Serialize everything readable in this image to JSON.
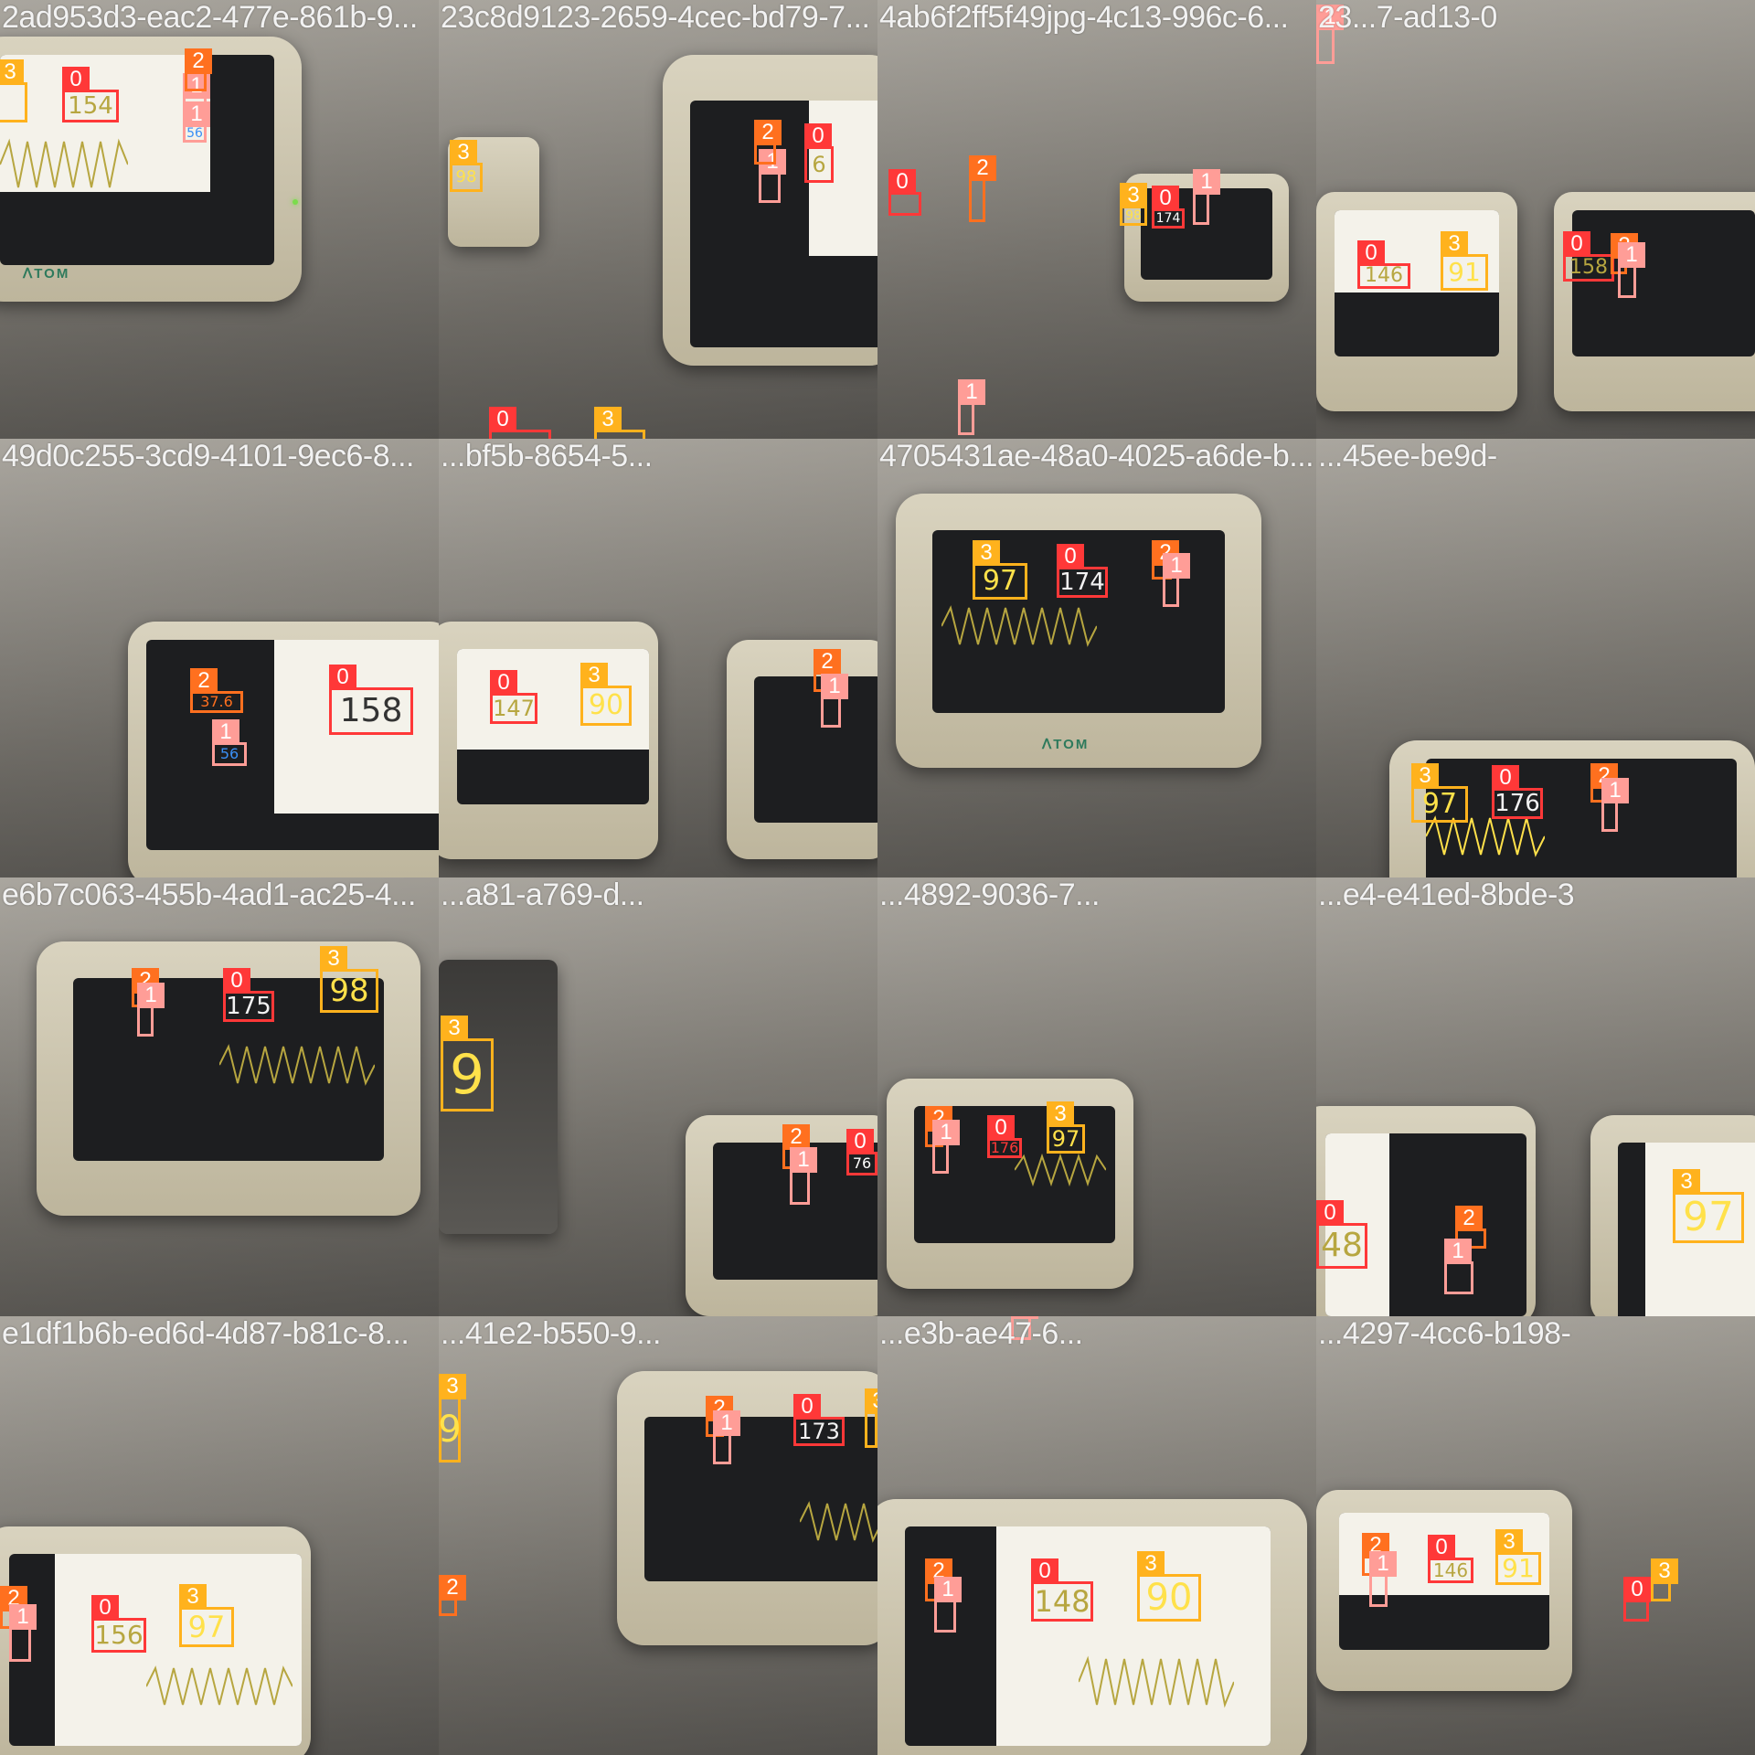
{
  "mosaic": {
    "tiles": [
      {
        "file": "2ad953d3-eac2-477e-861b-9...",
        "boxes": [
          {
            "cls": "0",
            "text": "154"
          },
          {
            "cls": "1",
            "text": ""
          },
          {
            "cls": "2",
            "text": ""
          },
          {
            "cls": "1",
            "text": "56"
          },
          {
            "cls": "3",
            "text": ""
          }
        ]
      },
      {
        "file": "23c8d9123-2659-4cec-bd79-7...",
        "boxes": [
          {
            "cls": "0",
            "text": "6"
          },
          {
            "cls": "1",
            "text": ""
          },
          {
            "cls": "2",
            "text": ""
          },
          {
            "cls": "3",
            "text": "98"
          },
          {
            "cls": "0",
            "text": ""
          },
          {
            "cls": "3",
            "text": ""
          }
        ]
      },
      {
        "file": "4ab6f2ff5f49jpg-4c13-996c-6...",
        "boxes": [
          {
            "cls": "0",
            "text": "174"
          },
          {
            "cls": "1",
            "text": ""
          },
          {
            "cls": "2",
            "text": ""
          },
          {
            "cls": "3",
            "text": "98"
          },
          {
            "cls": "0",
            "text": ""
          },
          {
            "cls": "1",
            "text": ""
          }
        ]
      },
      {
        "file": "23...7-ad13-0",
        "boxes": [
          {
            "cls": "0",
            "text": "146"
          },
          {
            "cls": "3",
            "text": "91"
          },
          {
            "cls": "0",
            "text": "158"
          },
          {
            "cls": "2",
            "text": ""
          },
          {
            "cls": "1",
            "text": ""
          },
          {
            "cls": "1",
            "text": ""
          }
        ]
      },
      {
        "file": "49d0c255-3cd9-4101-9ec6-8...",
        "boxes": [
          {
            "cls": "0",
            "text": "158"
          },
          {
            "cls": "1",
            "text": "56"
          },
          {
            "cls": "2",
            "text": "37.6"
          }
        ]
      },
      {
        "file": "...bf5b-8654-5...",
        "boxes": [
          {
            "cls": "0",
            "text": "147"
          },
          {
            "cls": "3",
            "text": "90"
          },
          {
            "cls": "2",
            "text": ""
          },
          {
            "cls": "1",
            "text": ""
          }
        ]
      },
      {
        "file": "4705431ae-48a0-4025-a6de-b...",
        "boxes": [
          {
            "cls": "0",
            "text": "174"
          },
          {
            "cls": "3",
            "text": "97"
          },
          {
            "cls": "2",
            "text": ""
          },
          {
            "cls": "1",
            "text": ""
          }
        ]
      },
      {
        "file": "...45ee-be9d-",
        "boxes": [
          {
            "cls": "0",
            "text": "176"
          },
          {
            "cls": "3",
            "text": "97"
          },
          {
            "cls": "2",
            "text": ""
          },
          {
            "cls": "1",
            "text": ""
          }
        ]
      },
      {
        "file": "e6b7c063-455b-4ad1-ac25-4...",
        "boxes": [
          {
            "cls": "0",
            "text": "175"
          },
          {
            "cls": "3",
            "text": "98"
          },
          {
            "cls": "2",
            "text": ""
          },
          {
            "cls": "1",
            "text": ""
          }
        ]
      },
      {
        "file": "...a81-a769-d...",
        "boxes": [
          {
            "cls": "3",
            "text": "9"
          },
          {
            "cls": "2",
            "text": ""
          },
          {
            "cls": "1",
            "text": ""
          },
          {
            "cls": "0",
            "text": "76"
          }
        ]
      },
      {
        "file": "...4892-9036-7...",
        "boxes": [
          {
            "cls": "0",
            "text": "176"
          },
          {
            "cls": "3",
            "text": "97"
          },
          {
            "cls": "2",
            "text": ""
          },
          {
            "cls": "1",
            "text": ""
          }
        ]
      },
      {
        "file": "...e4-e41ed-8bde-3",
        "boxes": [
          {
            "cls": "0",
            "text": "48"
          },
          {
            "cls": "3",
            "text": "97"
          },
          {
            "cls": "2",
            "text": ""
          },
          {
            "cls": "1",
            "text": ""
          }
        ]
      },
      {
        "file": "e1df1b6b-ed6d-4d87-b81c-8...",
        "boxes": [
          {
            "cls": "0",
            "text": "156"
          },
          {
            "cls": "3",
            "text": "97"
          },
          {
            "cls": "2",
            "text": ""
          },
          {
            "cls": "1",
            "text": ""
          }
        ]
      },
      {
        "file": "...41e2-b550-9...",
        "boxes": [
          {
            "cls": "0",
            "text": "173"
          },
          {
            "cls": "3",
            "text": "9"
          },
          {
            "cls": "2",
            "text": ""
          },
          {
            "cls": "1",
            "text": ""
          },
          {
            "cls": "2",
            "text": ""
          },
          {
            "cls": "3",
            "text": ""
          }
        ]
      },
      {
        "file": "...e3b-ae47-6...",
        "boxes": [
          {
            "cls": "0",
            "text": "148"
          },
          {
            "cls": "3",
            "text": "90"
          },
          {
            "cls": "2",
            "text": ""
          },
          {
            "cls": "1",
            "text": ""
          },
          {
            "cls": "1",
            "text": ""
          }
        ]
      },
      {
        "file": "...4297-4cc6-b198-",
        "boxes": [
          {
            "cls": "0",
            "text": "146"
          },
          {
            "cls": "3",
            "text": "91"
          },
          {
            "cls": "2",
            "text": ""
          },
          {
            "cls": "1",
            "text": ""
          },
          {
            "cls": "0",
            "text": ""
          },
          {
            "cls": "3",
            "text": ""
          }
        ]
      }
    ]
  }
}
